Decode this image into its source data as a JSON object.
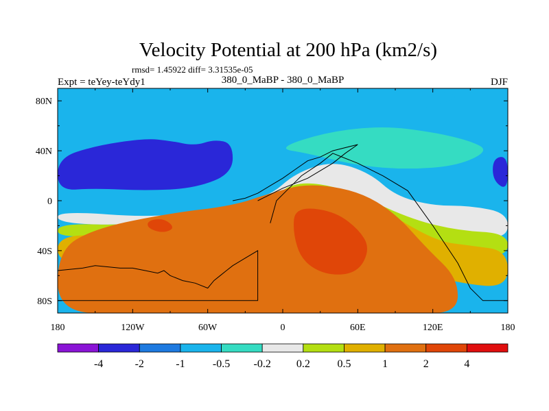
{
  "chart_data": {
    "type": "heatmap",
    "title": "Velocity Potential at 200 hPa (km2/s)",
    "stats_label": "rmsd= 1.45922 diff= 3.31535e-05",
    "left_label": "Expt = teYey-teYdy1",
    "center_label": "380_0_MaBP - 380_0_MaBP",
    "right_label": "DJF",
    "xlim": [
      -180,
      180
    ],
    "ylim": [
      -90,
      90
    ],
    "x_ticks": [
      {
        "value": -180,
        "label": "180"
      },
      {
        "value": -120,
        "label": "120W"
      },
      {
        "value": -60,
        "label": "60W"
      },
      {
        "value": 0,
        "label": "0"
      },
      {
        "value": 60,
        "label": "60E"
      },
      {
        "value": 120,
        "label": "120E"
      },
      {
        "value": 180,
        "label": "180"
      }
    ],
    "y_ticks": [
      {
        "value": 80,
        "label": "80N"
      },
      {
        "value": 40,
        "label": "40N"
      },
      {
        "value": 0,
        "label": "0"
      },
      {
        "value": -40,
        "label": "40S"
      },
      {
        "value": -80,
        "label": "80S"
      }
    ],
    "colorbar": {
      "colors": [
        "#8a14d6",
        "#2a27d8",
        "#1e7ae0",
        "#1ab4ec",
        "#35dcc2",
        "#e8e8e8",
        "#b4df12",
        "#e0b000",
        "#e07010",
        "#e04608",
        "#e00e0e"
      ],
      "boundaries": [
        {
          "value": -4,
          "label": "-4"
        },
        {
          "value": -2,
          "label": "-2"
        },
        {
          "value": -1,
          "label": "-1"
        },
        {
          "value": -0.5,
          "label": "-0.5"
        },
        {
          "value": -0.2,
          "label": "-0.2"
        },
        {
          "value": 0.2,
          "label": "0.2"
        },
        {
          "value": 0.5,
          "label": "0.5"
        },
        {
          "value": 1,
          "label": "1"
        },
        {
          "value": 2,
          "label": "2"
        },
        {
          "value": 4,
          "label": "4"
        }
      ]
    },
    "features": [
      {
        "name": "nh-polar-skyblue",
        "level": -1,
        "lon": [
          -110,
          155,
          115,
          60,
          15,
          -20,
          -80
        ],
        "lat": [
          90,
          90,
          72,
          75,
          83,
          86,
          82
        ]
      },
      {
        "name": "nh-cyan-band",
        "level": -0.5,
        "lon": [
          -5,
          35,
          80,
          120,
          150,
          165,
          140,
          100,
          60,
          20
        ],
        "lat": [
          42,
          55,
          60,
          55,
          48,
          40,
          28,
          25,
          28,
          38
        ]
      },
      {
        "name": "nh-midlat-dark-blue",
        "level": -3,
        "lon": [
          -180,
          -150,
          -110,
          -90,
          -70,
          -55,
          -40,
          -40,
          -70,
          -110,
          -150,
          -180
        ],
        "lat": [
          34,
          44,
          50,
          48,
          44,
          49,
          46,
          22,
          10,
          8,
          10,
          8
        ]
      },
      {
        "name": "nh-pacific-dark-blue",
        "level": -3,
        "lon": [
          168,
          180,
          180,
          168
        ],
        "lat": [
          34,
          36,
          8,
          16
        ]
      },
      {
        "name": "neutral-white-band",
        "level": 0,
        "lon": [
          -180,
          -100,
          -40,
          -10,
          10,
          40,
          70,
          90,
          120,
          150,
          180,
          180,
          150,
          120,
          95,
          70,
          50,
          25,
          0,
          -20,
          -60,
          -120,
          -180
        ],
        "lat": [
          -8,
          -14,
          -4,
          4,
          22,
          32,
          22,
          4,
          -4,
          -4,
          -10,
          -30,
          -28,
          -22,
          -14,
          -2,
          10,
          12,
          2,
          -6,
          -10,
          -20,
          -18
        ]
      },
      {
        "name": "trop-yellow-green",
        "level": 0.3,
        "lon": [
          -180,
          -120,
          -60,
          -10,
          10,
          50,
          100,
          140,
          180,
          180,
          140,
          100,
          40,
          0,
          -60,
          -120,
          -180
        ],
        "lat": [
          -18,
          -20,
          -10,
          0,
          16,
          10,
          -14,
          -24,
          -26,
          -45,
          -45,
          -30,
          4,
          8,
          -18,
          -26,
          -30
        ]
      },
      {
        "name": "sh-orange-yellow",
        "level": 0.7,
        "lon": [
          -180,
          -120,
          -60,
          0,
          60,
          120,
          150,
          180,
          180,
          140,
          80,
          20,
          -40,
          -120,
          -180
        ],
        "lat": [
          -26,
          -30,
          -12,
          6,
          6,
          -32,
          -36,
          -40,
          -70,
          -66,
          -50,
          -34,
          -40,
          -50,
          -52
        ]
      },
      {
        "name": "sh-broad-orange",
        "level": 1.5,
        "lon": [
          -150,
          -90,
          -40,
          -10,
          20,
          60,
          90,
          115,
          140,
          140,
          100,
          40,
          -40,
          -120,
          -180,
          -180
        ],
        "lat": [
          -22,
          -10,
          -4,
          6,
          14,
          8,
          -10,
          -38,
          -62,
          -90,
          -90,
          -90,
          -90,
          -90,
          -90,
          -40
        ]
      },
      {
        "name": "sh-africa-red-core",
        "level": 3,
        "lon": [
          10,
          40,
          60,
          70,
          60,
          35,
          15,
          8
        ],
        "lat": [
          -5,
          -8,
          -22,
          -38,
          -58,
          -60,
          -48,
          -25
        ]
      },
      {
        "name": "sh-pacific-red-spot",
        "level": 3,
        "lon": [
          -108,
          -95,
          -86,
          -96,
          -108
        ],
        "lat": [
          -16,
          -14,
          -22,
          -26,
          -22
        ]
      }
    ],
    "land_outline": {
      "west": {
        "lon": [
          -180,
          -160,
          -150,
          -130,
          -120,
          -110,
          -100,
          -95,
          -90,
          -80,
          -70,
          -60,
          -55,
          -50,
          -45,
          -40,
          -30,
          -20,
          -20,
          -30,
          -40,
          -60,
          -80,
          -100,
          -120,
          -140,
          -160,
          -180
        ],
        "lat": [
          -56,
          -54,
          -52,
          -54,
          -54,
          -56,
          -58,
          -56,
          -60,
          -64,
          -66,
          -70,
          -64,
          -60,
          -56,
          -52,
          -46,
          -40,
          -80,
          -80,
          -80,
          -80,
          -80,
          -80,
          -80,
          -80,
          -80,
          -80
        ]
      },
      "east": {
        "lon": [
          -10,
          -5,
          5,
          15,
          30,
          40,
          60,
          80,
          100,
          120,
          140,
          150,
          160,
          180
        ],
        "lat": [
          -18,
          0,
          10,
          20,
          30,
          38,
          30,
          20,
          8,
          -20,
          -50,
          -70,
          -80,
          -80
        ]
      },
      "north": {
        "lon": [
          -20,
          0,
          20,
          40,
          50,
          60,
          40,
          30,
          20,
          10,
          0,
          -10,
          -20,
          -30,
          -40
        ],
        "lat": [
          0,
          10,
          18,
          30,
          38,
          45,
          40,
          35,
          32,
          25,
          18,
          12,
          6,
          2,
          0
        ]
      }
    }
  }
}
